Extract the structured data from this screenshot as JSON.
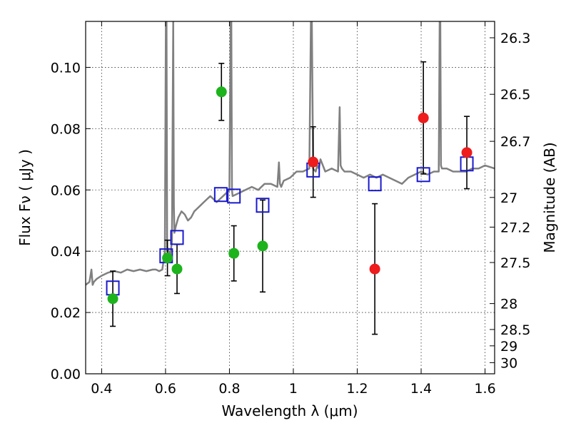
{
  "chart_data": {
    "type": "scatter",
    "xlabel": "Wavelength  λ (μm)",
    "ylabel": "Flux  Fν  ( μJy )",
    "ylabel_right": "Magnitude (AB)",
    "xlim": [
      0.35,
      1.63
    ],
    "ylim": [
      0.0,
      0.115
    ],
    "grid": true,
    "x_ticks": [
      {
        "value": 0.4,
        "label": "0.4"
      },
      {
        "value": 0.6,
        "label": "0.6"
      },
      {
        "value": 0.8,
        "label": "0.8"
      },
      {
        "value": 1.0,
        "label": "1"
      },
      {
        "value": 1.2,
        "label": "1.2"
      },
      {
        "value": 1.4,
        "label": "1.4"
      },
      {
        "value": 1.6,
        "label": "1.6"
      }
    ],
    "y_ticks": [
      {
        "value": 0.0,
        "label": "0.00"
      },
      {
        "value": 0.02,
        "label": "0.02"
      },
      {
        "value": 0.04,
        "label": "0.04"
      },
      {
        "value": 0.06,
        "label": "0.06"
      },
      {
        "value": 0.08,
        "label": "0.08"
      },
      {
        "value": 0.1,
        "label": "0.10"
      }
    ],
    "mag_ticks": [
      {
        "value": 26.3,
        "label": "26.3"
      },
      {
        "value": 26.5,
        "label": "26.5"
      },
      {
        "value": 26.7,
        "label": "26.7"
      },
      {
        "value": 27.0,
        "label": "27"
      },
      {
        "value": 27.2,
        "label": "27.2"
      },
      {
        "value": 27.5,
        "label": "27.5"
      },
      {
        "value": 28.0,
        "label": "28"
      },
      {
        "value": 28.5,
        "label": "28.5"
      },
      {
        "value": 29.0,
        "label": "29"
      },
      {
        "value": 30.0,
        "label": "30"
      }
    ],
    "colors": {
      "green": "#1db31d",
      "red": "#ee1c1c",
      "model_box": "#1a1acc",
      "spectrum": "#808080",
      "errorbar": "#000000"
    },
    "series": [
      {
        "marker": "circle",
        "color": "green",
        "points": [
          {
            "x": 0.435,
            "y": 0.0245,
            "err": 0.009
          },
          {
            "x": 0.606,
            "y": 0.0378,
            "err": 0.0058
          },
          {
            "x": 0.636,
            "y": 0.0342,
            "err": 0.008
          },
          {
            "x": 0.775,
            "y": 0.092,
            "err": 0.0093
          },
          {
            "x": 0.814,
            "y": 0.0393,
            "err": 0.009
          },
          {
            "x": 0.904,
            "y": 0.0417,
            "err": 0.015
          }
        ]
      },
      {
        "marker": "circle",
        "color": "red",
        "points": [
          {
            "x": 1.062,
            "y": 0.0691,
            "err": 0.0115
          },
          {
            "x": 1.255,
            "y": 0.0342,
            "err": 0.0213
          },
          {
            "x": 1.407,
            "y": 0.0835,
            "err": 0.0183
          },
          {
            "x": 1.543,
            "y": 0.0722,
            "err": 0.0118
          }
        ]
      },
      {
        "marker": "open-square",
        "color": "model_box",
        "points": [
          {
            "x": 0.435,
            "y": 0.028
          },
          {
            "x": 0.602,
            "y": 0.0385
          },
          {
            "x": 0.636,
            "y": 0.0445
          },
          {
            "x": 0.773,
            "y": 0.0585
          },
          {
            "x": 0.814,
            "y": 0.058
          },
          {
            "x": 0.904,
            "y": 0.055
          },
          {
            "x": 1.062,
            "y": 0.0665
          },
          {
            "x": 1.255,
            "y": 0.062
          },
          {
            "x": 1.407,
            "y": 0.065
          },
          {
            "x": 1.543,
            "y": 0.0685
          }
        ]
      }
    ],
    "spectrum": {
      "x": [
        0.35,
        0.362,
        0.368,
        0.372,
        0.376,
        0.385,
        0.4,
        0.42,
        0.44,
        0.46,
        0.48,
        0.5,
        0.52,
        0.54,
        0.56,
        0.57,
        0.58,
        0.59,
        0.598,
        0.601,
        0.603,
        0.605,
        0.607,
        0.61,
        0.615,
        0.62,
        0.624,
        0.626,
        0.628,
        0.632,
        0.64,
        0.65,
        0.66,
        0.67,
        0.68,
        0.69,
        0.7,
        0.71,
        0.72,
        0.73,
        0.74,
        0.75,
        0.76,
        0.77,
        0.78,
        0.79,
        0.8,
        0.804,
        0.806,
        0.808,
        0.81,
        0.83,
        0.85,
        0.87,
        0.89,
        0.91,
        0.93,
        0.95,
        0.955,
        0.958,
        0.962,
        0.97,
        0.99,
        1.01,
        1.03,
        1.05,
        1.055,
        1.058,
        1.062,
        1.07,
        1.075,
        1.08,
        1.085,
        1.1,
        1.12,
        1.14,
        1.145,
        1.148,
        1.152,
        1.16,
        1.18,
        1.2,
        1.22,
        1.24,
        1.26,
        1.28,
        1.3,
        1.32,
        1.34,
        1.36,
        1.38,
        1.4,
        1.42,
        1.44,
        1.455,
        1.458,
        1.46,
        1.462,
        1.465,
        1.48,
        1.5,
        1.52,
        1.54,
        1.56,
        1.58,
        1.6,
        1.63
      ],
      "y": [
        0.029,
        0.03,
        0.034,
        0.029,
        0.03,
        0.031,
        0.032,
        0.033,
        0.0335,
        0.033,
        0.034,
        0.0335,
        0.034,
        0.0335,
        0.034,
        0.034,
        0.0335,
        0.034,
        0.04,
        0.115,
        0.115,
        0.04,
        0.041,
        0.04,
        0.039,
        0.043,
        0.115,
        0.055,
        0.046,
        0.048,
        0.051,
        0.053,
        0.052,
        0.05,
        0.051,
        0.053,
        0.054,
        0.055,
        0.056,
        0.057,
        0.058,
        0.057,
        0.056,
        0.057,
        0.058,
        0.059,
        0.06,
        0.115,
        0.115,
        0.06,
        0.058,
        0.059,
        0.06,
        0.061,
        0.06,
        0.062,
        0.062,
        0.061,
        0.069,
        0.062,
        0.061,
        0.063,
        0.064,
        0.066,
        0.066,
        0.067,
        0.115,
        0.115,
        0.067,
        0.066,
        0.068,
        0.067,
        0.07,
        0.066,
        0.067,
        0.066,
        0.087,
        0.068,
        0.067,
        0.066,
        0.066,
        0.065,
        0.064,
        0.065,
        0.064,
        0.065,
        0.064,
        0.063,
        0.062,
        0.064,
        0.065,
        0.066,
        0.065,
        0.066,
        0.066,
        0.115,
        0.115,
        0.068,
        0.067,
        0.067,
        0.066,
        0.066,
        0.066,
        0.067,
        0.067,
        0.068,
        0.067
      ]
    }
  }
}
